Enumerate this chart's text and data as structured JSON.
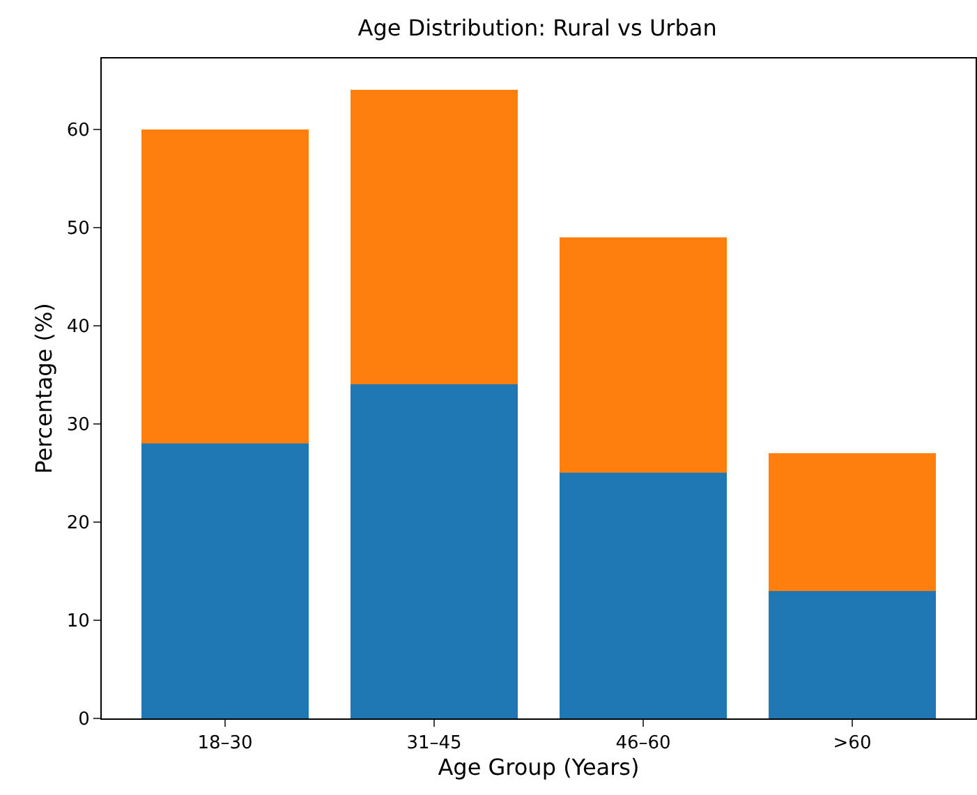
{
  "chart_data": {
    "type": "bar",
    "title": "Age Distribution: Rural vs Urban",
    "xlabel": "Age Group (Years)",
    "ylabel": "Percentage (%)",
    "categories": [
      "18–30",
      "31–45",
      "46–60",
      ">60"
    ],
    "stacked": true,
    "series": [
      {
        "color": "#1f77b4",
        "values": [
          28,
          34,
          25,
          13
        ]
      },
      {
        "color": "#ff7f0e",
        "values": [
          32,
          30,
          24,
          14
        ]
      }
    ],
    "ylim": [
      0,
      67.2
    ],
    "yticks": [
      0,
      10,
      20,
      30,
      40,
      50,
      60
    ]
  }
}
